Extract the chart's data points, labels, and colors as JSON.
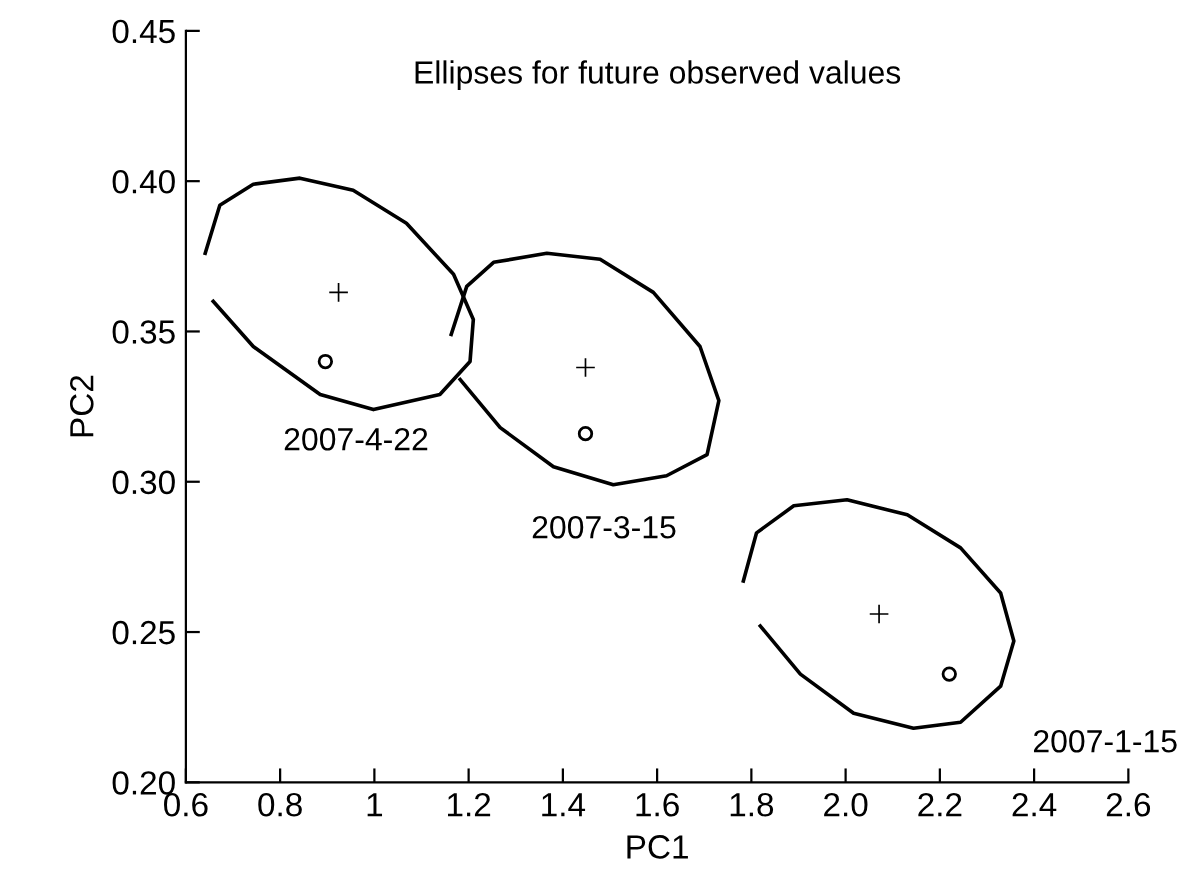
{
  "chart_data": {
    "type": "scatter",
    "title": "Ellipses for future observed values",
    "xlabel": "PC1",
    "ylabel": "PC2",
    "xlim": [
      0.6,
      2.6
    ],
    "ylim": [
      0.2,
      0.45
    ],
    "xticks": [
      0.6,
      0.8,
      1,
      1.2,
      1.4,
      1.6,
      1.8,
      {
        "value": 2,
        "label": "2.0"
      },
      2.2,
      2.4,
      2.6
    ],
    "yticks": [
      {
        "value": 0.2,
        "label": "0.20"
      },
      0.25,
      {
        "value": 0.3,
        "label": "0.30"
      },
      0.35,
      {
        "value": 0.4,
        "label": "0.40"
      },
      0.45
    ],
    "grid": false,
    "legend": false,
    "series": [
      {
        "marker": "cross",
        "color": "#000000",
        "x": [
          0.924,
          1.448,
          2.071
        ],
        "values": [
          0.363,
          0.338,
          0.256
        ]
      },
      {
        "marker": "circle",
        "color": "#000000",
        "x": [
          0.896,
          1.448,
          2.22
        ],
        "values": [
          0.34,
          0.316,
          0.236
        ]
      },
      {
        "type": "line",
        "marker": "none",
        "color": "#000000",
        "x": [
          0.641,
          0.672,
          0.743,
          0.842,
          0.955,
          1.068,
          1.168,
          1.21,
          1.203,
          1.139,
          0.998,
          0.885,
          0.743,
          0.658
        ],
        "values": [
          0.376,
          0.392,
          0.399,
          0.401,
          0.397,
          0.386,
          0.369,
          0.354,
          0.34,
          0.329,
          0.324,
          0.329,
          0.345,
          0.36
        ]
      },
      {
        "type": "line",
        "marker": "none",
        "color": "#000000",
        "x": [
          1.163,
          1.196,
          1.253,
          1.366,
          1.479,
          1.592,
          1.691,
          1.731,
          1.706,
          1.62,
          1.507,
          1.38,
          1.267,
          1.182
        ],
        "values": [
          0.349,
          0.365,
          0.373,
          0.376,
          0.374,
          0.363,
          0.345,
          0.327,
          0.309,
          0.302,
          0.299,
          0.305,
          0.318,
          0.334
        ]
      },
      {
        "type": "line",
        "marker": "none",
        "color": "#000000",
        "x": [
          1.783,
          1.811,
          1.89,
          2.003,
          2.131,
          2.244,
          2.329,
          2.357,
          2.329,
          2.244,
          2.144,
          2.017,
          1.904,
          1.819
        ],
        "values": [
          0.267,
          0.283,
          0.292,
          0.294,
          0.289,
          0.278,
          0.263,
          0.247,
          0.232,
          0.22,
          0.218,
          0.223,
          0.236,
          0.252
        ]
      }
    ],
    "annotations": [
      "2007-4-22",
      "2007-3-15",
      "2007-1-15"
    ]
  }
}
